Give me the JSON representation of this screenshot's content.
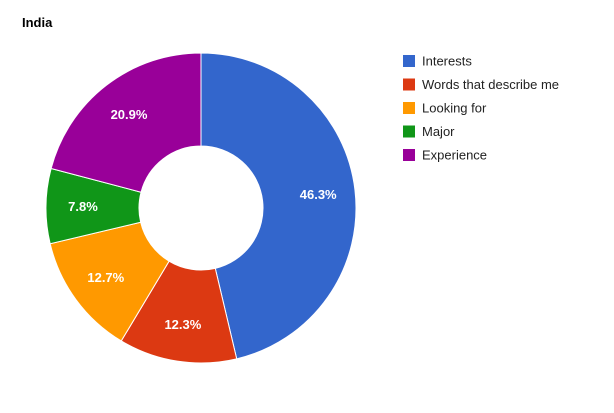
{
  "chart_data": {
    "type": "pie",
    "donut": true,
    "title": "India",
    "start_angle_deg": 0,
    "direction": "clockwise",
    "legend_position": "right",
    "slices": [
      {
        "label": "Interests",
        "value": 46.3,
        "display": "46.3%",
        "color": "#3366cc"
      },
      {
        "label": "Words that describe me",
        "value": 12.3,
        "display": "12.3%",
        "color": "#dc3912"
      },
      {
        "label": "Looking for",
        "value": 12.7,
        "display": "12.7%",
        "color": "#ff9900"
      },
      {
        "label": "Major",
        "value": 7.8,
        "display": "7.8%",
        "color": "#109618"
      },
      {
        "label": "Experience",
        "value": 20.9,
        "display": "20.9%",
        "color": "#990099"
      }
    ]
  }
}
